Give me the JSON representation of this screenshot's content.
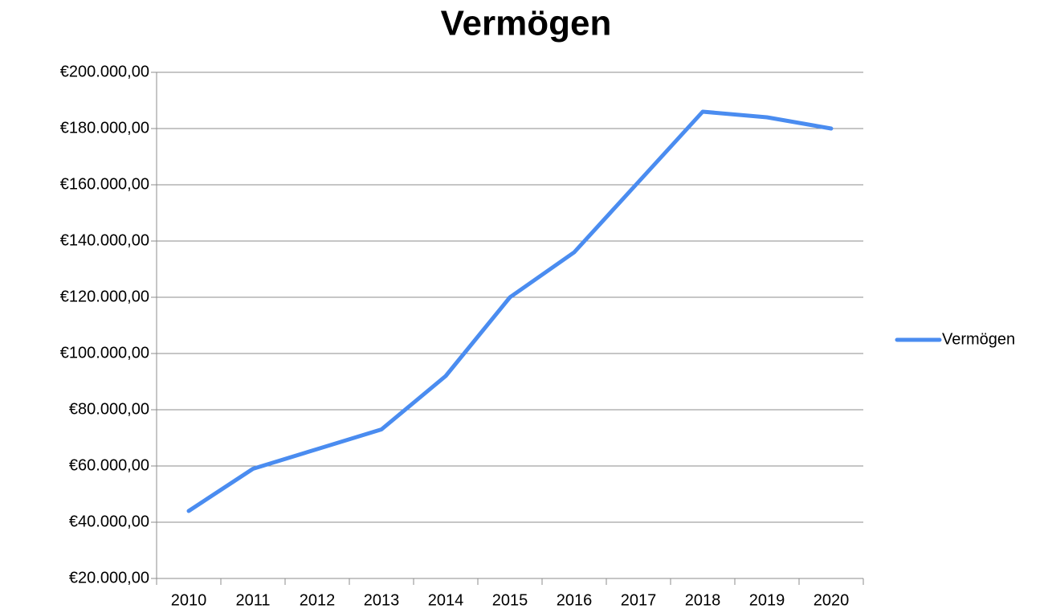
{
  "chart_data": {
    "type": "line",
    "title": "Vermögen",
    "categories": [
      "2010",
      "2011",
      "2012",
      "2013",
      "2014",
      "2015",
      "2016",
      "2017",
      "2018",
      "2019",
      "2020"
    ],
    "series": [
      {
        "name": "Vermögen",
        "color": "#4a8cf0",
        "values": [
          44000,
          59000,
          66000,
          73000,
          92000,
          120000,
          136000,
          161000,
          186000,
          184000,
          180000
        ]
      }
    ],
    "ylim": [
      20000,
      200000
    ],
    "yticks": [
      {
        "value": 20000,
        "label": "€20.000,00"
      },
      {
        "value": 40000,
        "label": "€40.000,00"
      },
      {
        "value": 60000,
        "label": "€60.000,00"
      },
      {
        "value": 80000,
        "label": "€80.000,00"
      },
      {
        "value": 100000,
        "label": "€100.000,00"
      },
      {
        "value": 120000,
        "label": "€120.000,00"
      },
      {
        "value": 140000,
        "label": "€140.000,00"
      },
      {
        "value": 160000,
        "label": "€160.000,00"
      },
      {
        "value": 180000,
        "label": "€180.000,00"
      },
      {
        "value": 200000,
        "label": "€200.000,00"
      }
    ],
    "grid": true,
    "legend": "right"
  }
}
